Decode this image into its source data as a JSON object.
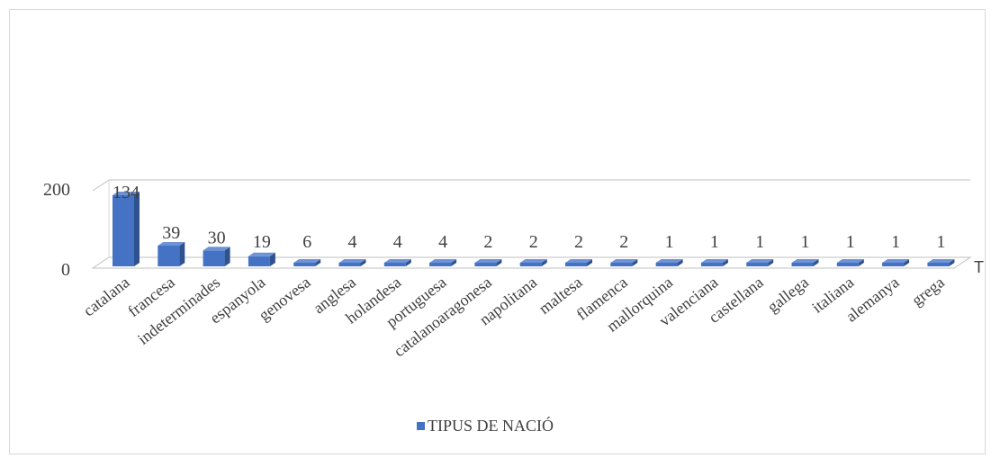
{
  "chart_data": {
    "type": "bar",
    "categories": [
      "catalana",
      "francesa",
      "indeterminades",
      "espanyola",
      "genovesa",
      "anglesa",
      "holandesa",
      "portuguesa",
      "catalanoaragonesa",
      "napolitana",
      "maltesa",
      "flamenca",
      "mallorquina",
      "valenciana",
      "castellana",
      "gallega",
      "italiana",
      "alemanya",
      "grega"
    ],
    "series": [
      {
        "name": "TIPUS DE NACIÓ",
        "values": [
          134,
          39,
          30,
          19,
          6,
          4,
          4,
          4,
          2,
          2,
          2,
          2,
          1,
          1,
          1,
          1,
          1,
          1,
          1
        ],
        "color": "#4472c4"
      }
    ],
    "y_ticks": [
      "0",
      "200"
    ],
    "ylim": [
      0,
      200
    ],
    "depth_axis_label": "T",
    "legend_position": "bottom",
    "grid": true,
    "style": "3d-column"
  }
}
